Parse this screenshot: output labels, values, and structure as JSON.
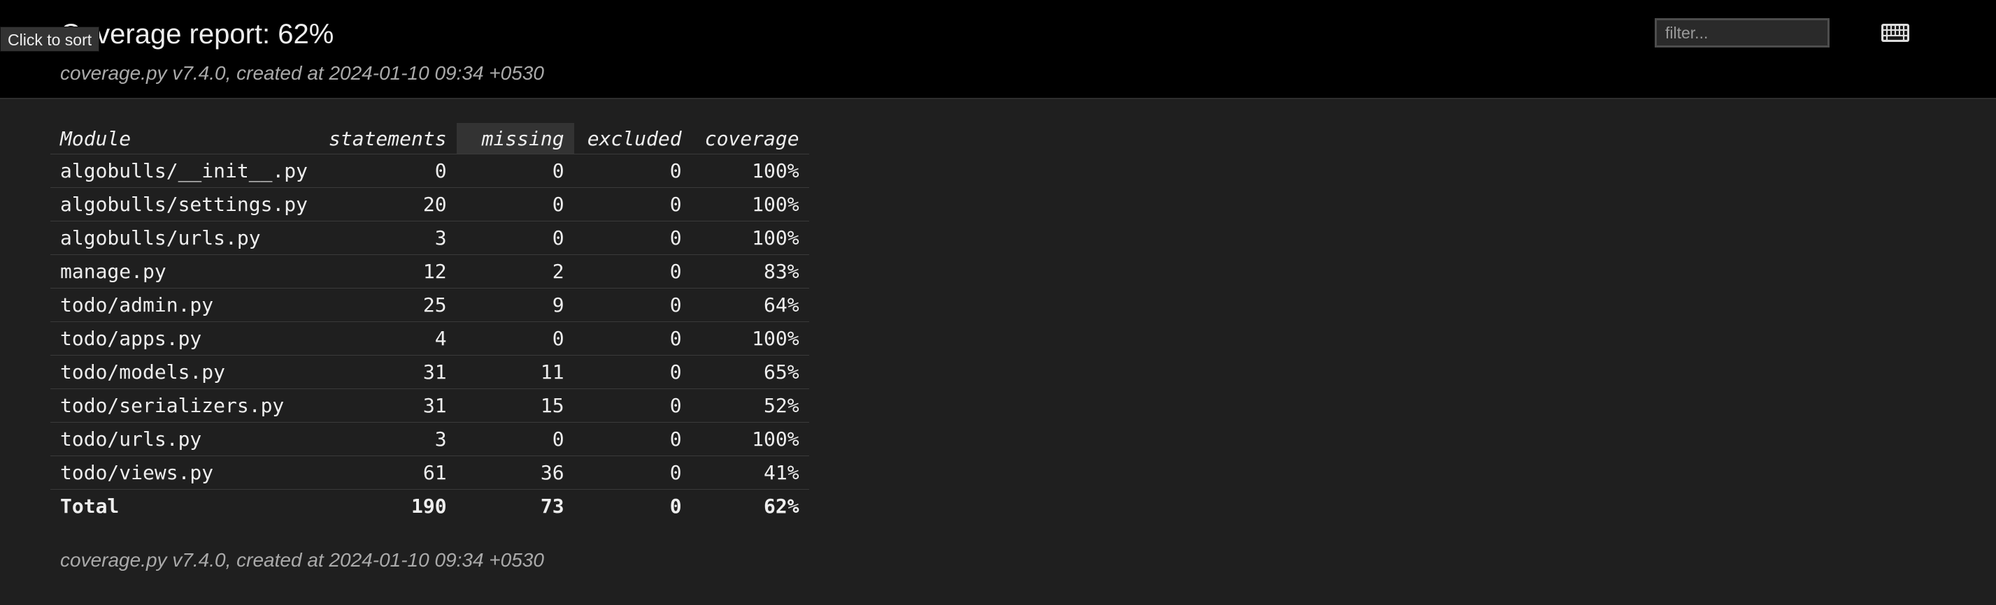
{
  "header": {
    "title": "Coverage report: 62%",
    "meta": "coverage.py v7.4.0, created at 2024-01-10 09:34 +0530",
    "tooltip": "Click to sort",
    "filter_placeholder": "filter...",
    "keyboard_icon": "keyboard-icon"
  },
  "table": {
    "columns": [
      "Module",
      "statements",
      "missing",
      "excluded",
      "coverage"
    ],
    "sorted_column": "missing",
    "rows": [
      {
        "module": "algobulls/__init__.py",
        "statements": "0",
        "missing": "0",
        "excluded": "0",
        "coverage": "100%"
      },
      {
        "module": "algobulls/settings.py",
        "statements": "20",
        "missing": "0",
        "excluded": "0",
        "coverage": "100%"
      },
      {
        "module": "algobulls/urls.py",
        "statements": "3",
        "missing": "0",
        "excluded": "0",
        "coverage": "100%"
      },
      {
        "module": "manage.py",
        "statements": "12",
        "missing": "2",
        "excluded": "0",
        "coverage": "83%"
      },
      {
        "module": "todo/admin.py",
        "statements": "25",
        "missing": "9",
        "excluded": "0",
        "coverage": "64%"
      },
      {
        "module": "todo/apps.py",
        "statements": "4",
        "missing": "0",
        "excluded": "0",
        "coverage": "100%"
      },
      {
        "module": "todo/models.py",
        "statements": "31",
        "missing": "11",
        "excluded": "0",
        "coverage": "65%"
      },
      {
        "module": "todo/serializers.py",
        "statements": "31",
        "missing": "15",
        "excluded": "0",
        "coverage": "52%"
      },
      {
        "module": "todo/urls.py",
        "statements": "3",
        "missing": "0",
        "excluded": "0",
        "coverage": "100%"
      },
      {
        "module": "todo/views.py",
        "statements": "61",
        "missing": "36",
        "excluded": "0",
        "coverage": "41%"
      }
    ],
    "total": {
      "module": "Total",
      "statements": "190",
      "missing": "73",
      "excluded": "0",
      "coverage": "62%"
    }
  },
  "footer": {
    "meta": "coverage.py v7.4.0, created at 2024-01-10 09:34 +0530"
  },
  "colors": {
    "header_bg": "#000000",
    "page_bg": "#1f1f1f",
    "text": "#eeeeee",
    "muted_text": "#aaaaaa",
    "sorted_header_bg": "#333333"
  }
}
